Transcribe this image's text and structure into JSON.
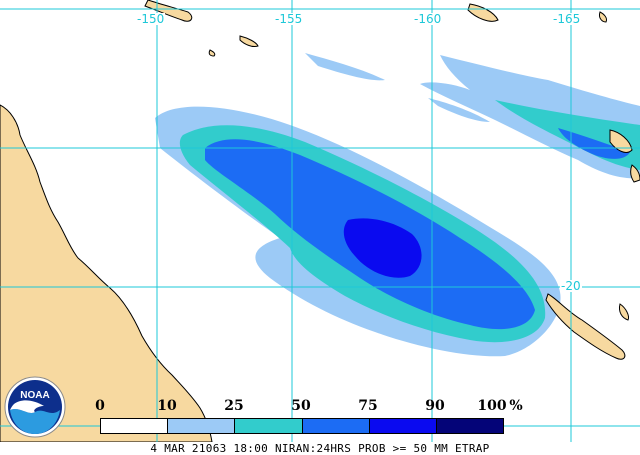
{
  "map": {
    "longitude_labels": [
      "-150",
      "-155",
      "-160",
      "-165"
    ],
    "latitude_labels": [
      "-20"
    ],
    "colors": {
      "ocean": "#ffffff",
      "land": "#f7d9a0",
      "coast": "#000000",
      "grid": "#1ec8d8"
    }
  },
  "legend": {
    "ticks": [
      "0",
      "10",
      "25",
      "50",
      "75",
      "90",
      "100"
    ],
    "unit": "%",
    "colors": [
      "#ffffff",
      "#9ccaf6",
      "#32cccc",
      "#1c6cf4",
      "#0a0af0",
      "#040478"
    ]
  },
  "caption": "4 MAR 21063 18:00 NIRAN:24HRS PROB >= 50 MM ETRAP",
  "logo": {
    "text": "NOAA",
    "icon": "noaa-logo-icon"
  }
}
